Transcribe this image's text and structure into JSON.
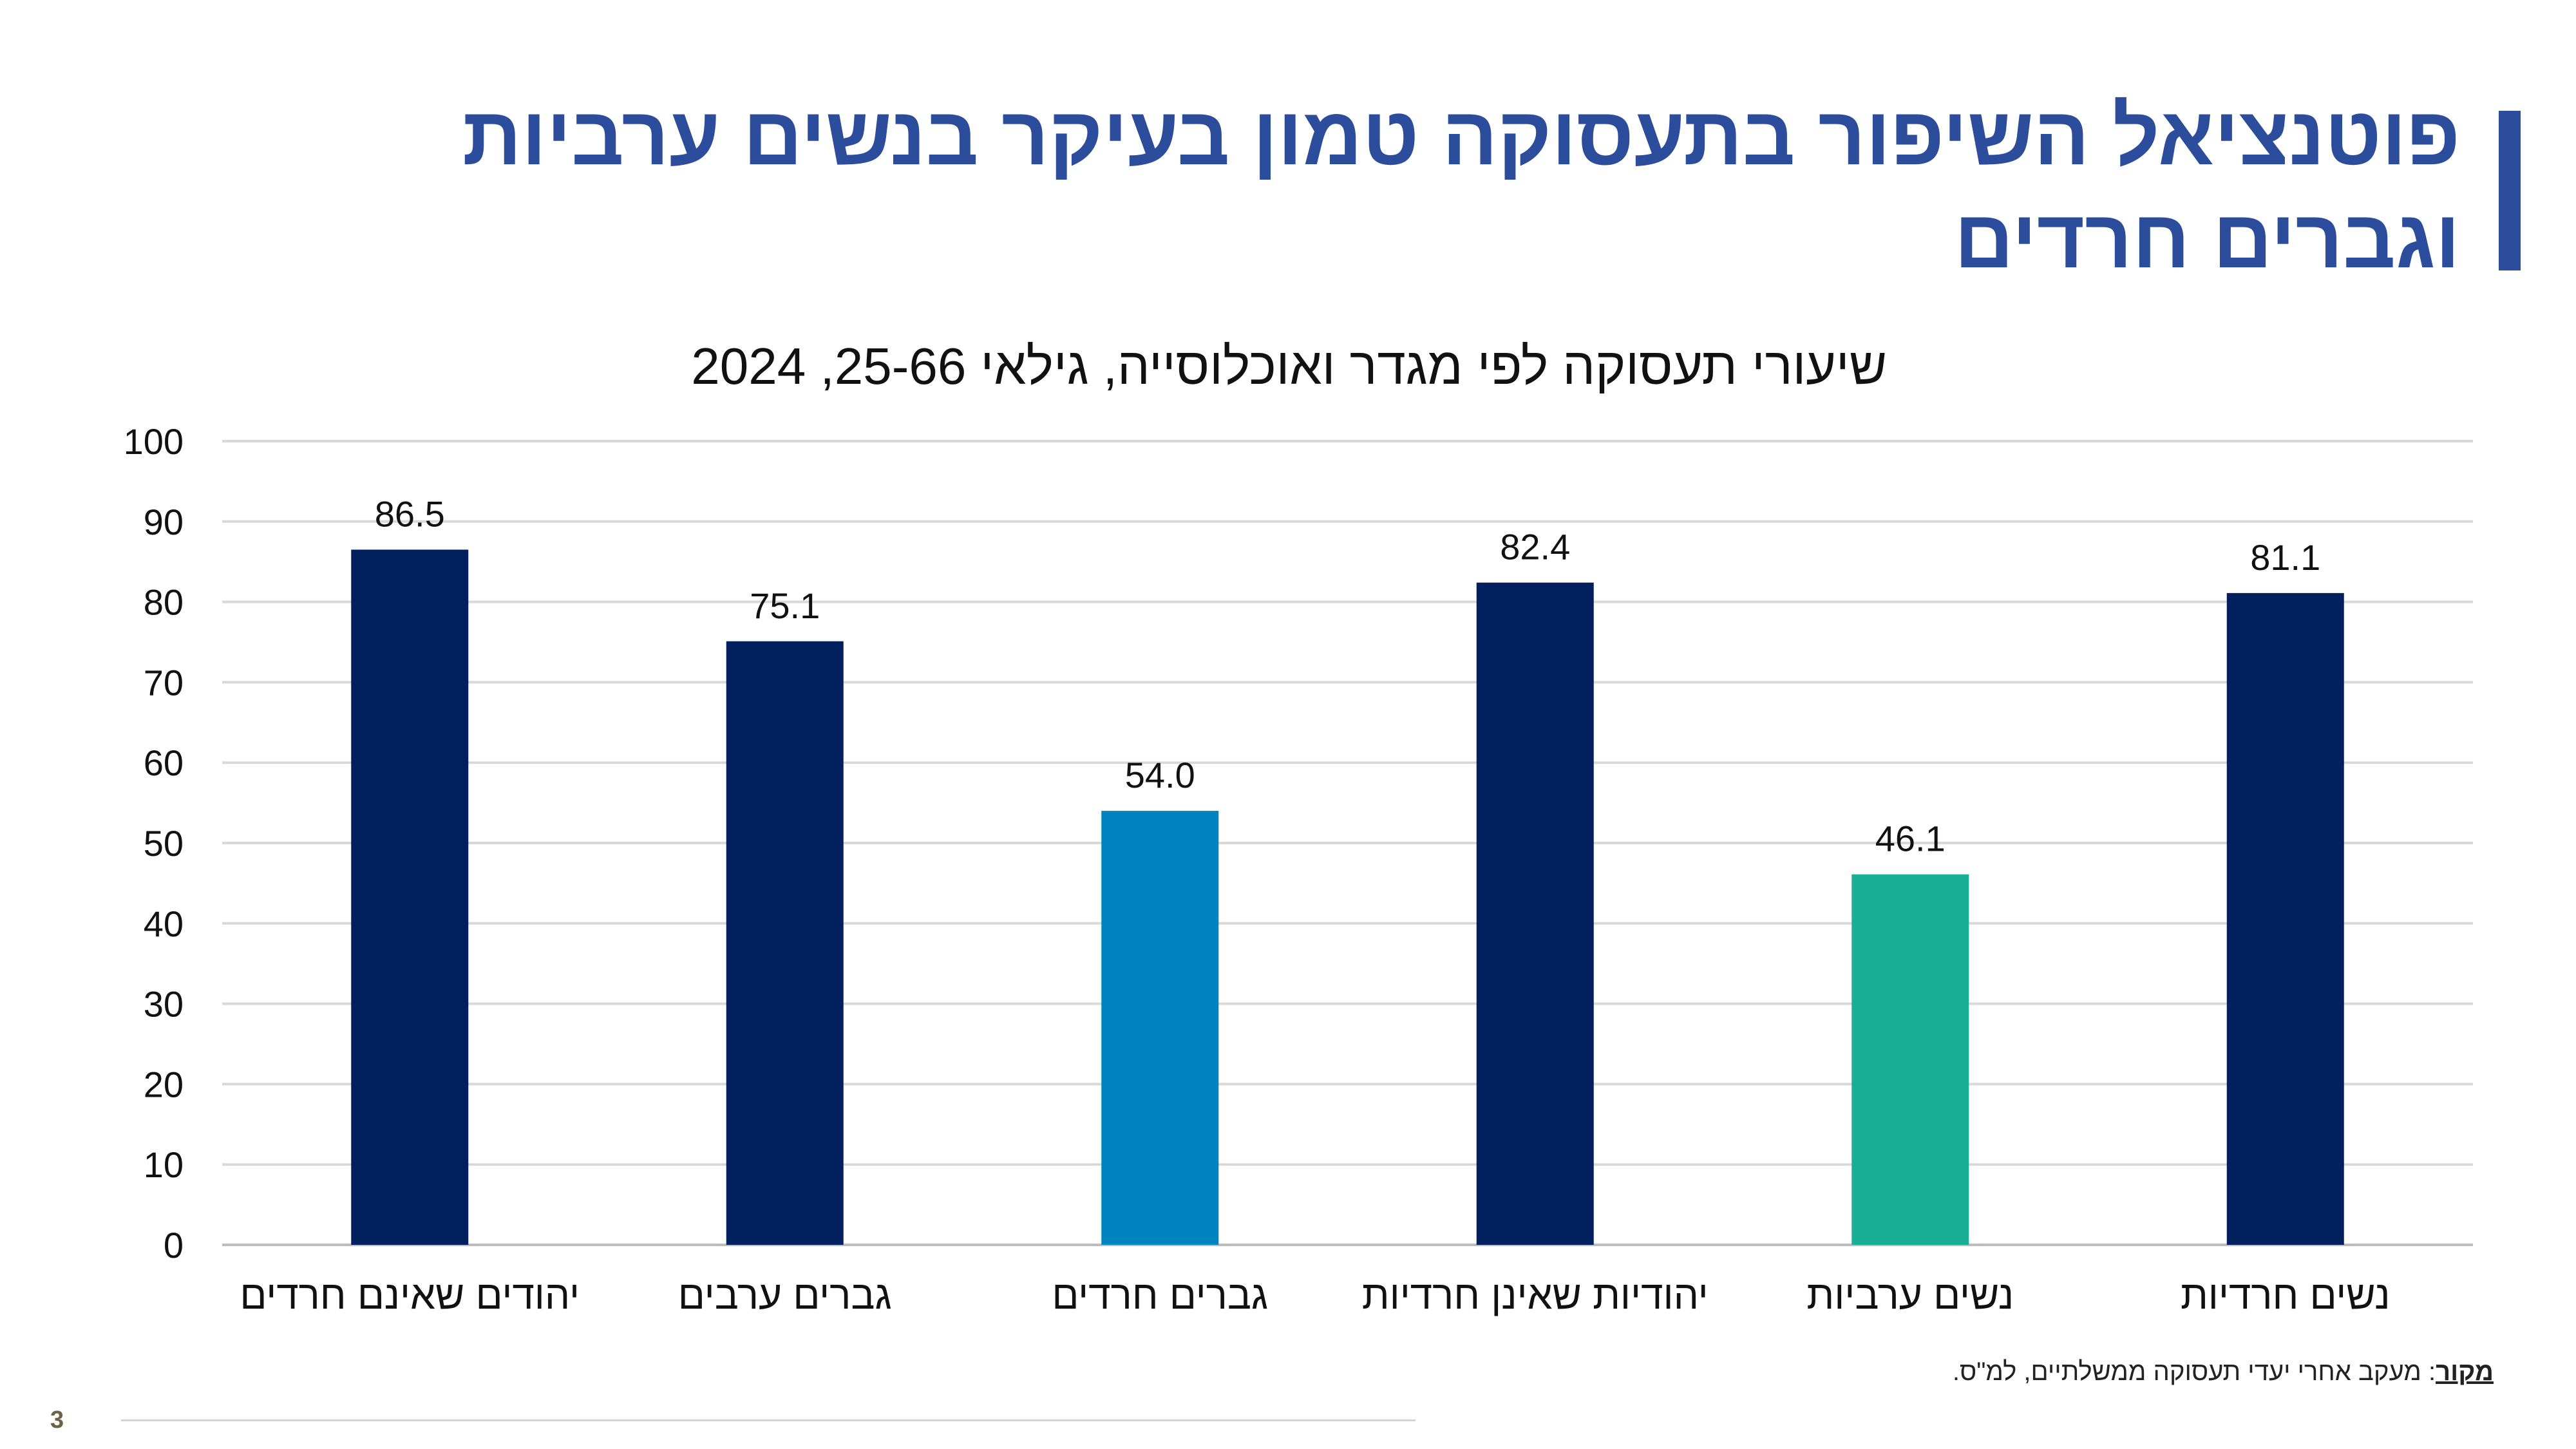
{
  "slide": {
    "title_line1": "פוטנציאל השיפור בתעסוקה טמון בעיקר בנשים ערביות",
    "title_line2": "וגברים חרדים",
    "source_label": "מקור",
    "source_text": ": מעקב אחרי יעדי תעסוקה ממשלתיים, למ\"ס.",
    "page_number": "3",
    "accent_color": "#2c4c9c"
  },
  "chart_data": {
    "type": "bar",
    "title": "שיעורי תעסוקה לפי מגדר ואוכלוסייה, גילאי 25-66, 2024",
    "categories": [
      "יהודים שאינם חרדים",
      "גברים ערבים",
      "גברים חרדים",
      "יהודיות שאינן חרדיות",
      "נשים ערביות",
      "נשים חרדיות"
    ],
    "values": [
      86.5,
      75.1,
      54.0,
      82.4,
      46.1,
      81.1
    ],
    "value_labels": [
      "86.5",
      "75.1",
      "54.0",
      "82.4",
      "46.1",
      "81.1"
    ],
    "colors": [
      "#03205e",
      "#03205e",
      "#0084bf",
      "#03205e",
      "#19ae96",
      "#03205e"
    ],
    "ylim": [
      0,
      100
    ],
    "yticks": [
      0,
      10,
      20,
      30,
      40,
      50,
      60,
      70,
      80,
      90,
      100
    ],
    "grid": true,
    "legend": "none"
  }
}
